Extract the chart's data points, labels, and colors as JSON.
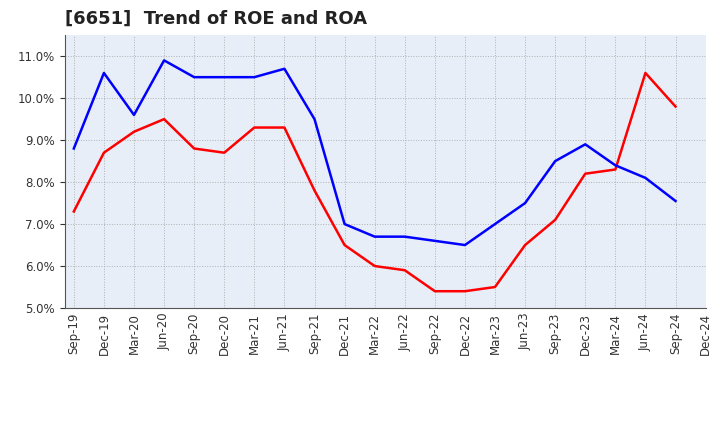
{
  "title": "[6651]  Trend of ROE and ROA",
  "x_labels": [
    "Sep-19",
    "Dec-19",
    "Mar-20",
    "Jun-20",
    "Sep-20",
    "Dec-20",
    "Mar-21",
    "Jun-21",
    "Sep-21",
    "Dec-21",
    "Mar-22",
    "Jun-22",
    "Sep-22",
    "Dec-22",
    "Mar-23",
    "Jun-23",
    "Sep-23",
    "Dec-23",
    "Mar-24",
    "Jun-24",
    "Sep-24",
    "Dec-24"
  ],
  "roe": [
    7.3,
    8.7,
    9.2,
    9.5,
    8.8,
    8.7,
    9.3,
    9.3,
    7.8,
    6.5,
    6.0,
    5.9,
    5.4,
    5.4,
    5.5,
    6.5,
    7.1,
    8.2,
    8.3,
    10.6,
    9.8,
    null
  ],
  "roa": [
    8.8,
    10.6,
    9.6,
    10.9,
    10.5,
    10.5,
    10.5,
    10.7,
    9.5,
    7.0,
    6.7,
    6.7,
    6.6,
    6.5,
    7.0,
    7.5,
    8.5,
    8.9,
    8.4,
    8.1,
    7.55,
    null
  ],
  "roe_color": "#ff0000",
  "roa_color": "#0000ff",
  "ylim": [
    5.0,
    11.5
  ],
  "yticks": [
    5.0,
    6.0,
    7.0,
    8.0,
    9.0,
    10.0,
    11.0
  ],
  "background_color": "#ffffff",
  "grid_color": "#aaaaaa",
  "title_fontsize": 13,
  "legend_fontsize": 10,
  "tick_fontsize": 8.5
}
